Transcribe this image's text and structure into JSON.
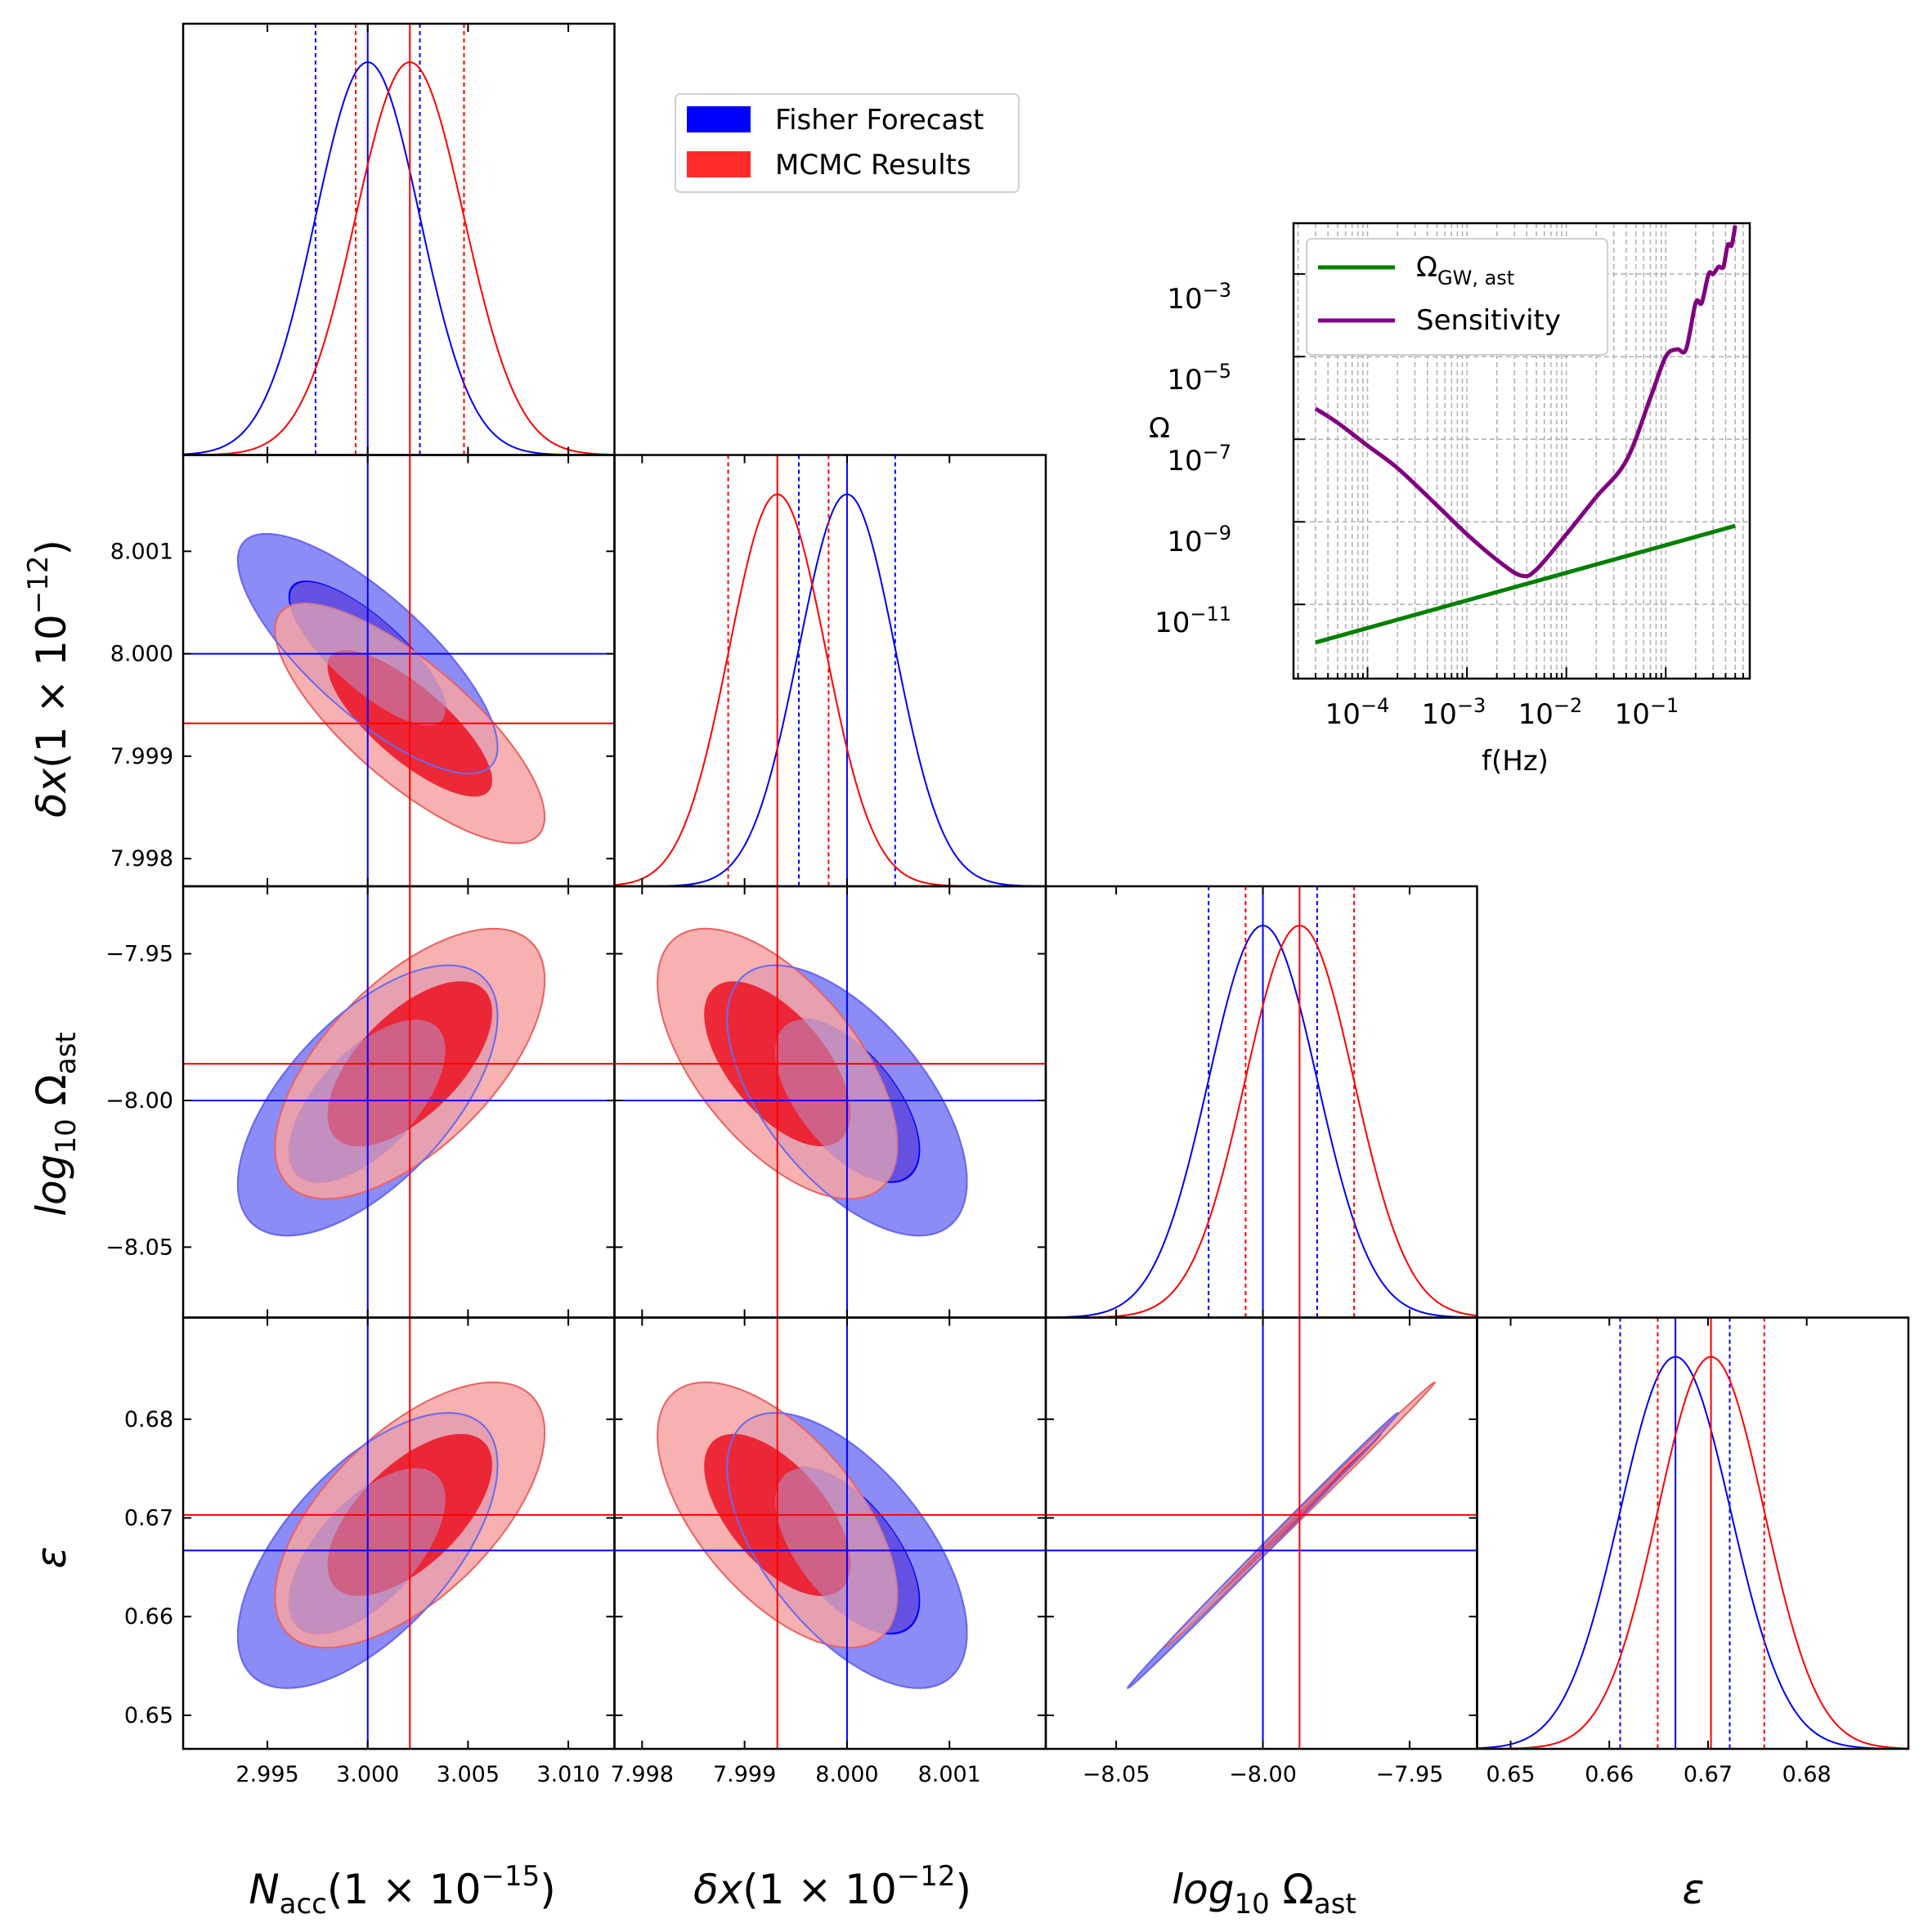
{
  "colors": {
    "fisher": "#0000ff",
    "fisher_fill_outer": "#8c8cf7",
    "mcmc": "#ff0000",
    "mcmc_fill_outer": "#f6a3a3",
    "mcmc_fill_inner": "#ec1c2c",
    "omega_gw": "#008000",
    "sensitivity": "#800080",
    "grid": "#b0b0b0"
  },
  "legend": {
    "fisher_label": "Fisher Forecast",
    "mcmc_label": "MCMC Results"
  },
  "inset": {
    "omega_label": "ΩGW, ast",
    "omega_main": "Ω",
    "omega_sub": "GW, ast",
    "sensitivity_label": "Sensitivity",
    "ylabel": "Ω",
    "xlabel": "f(Hz)",
    "ytick_labels": [
      {
        "base": "10",
        "exp": "−3"
      },
      {
        "base": "10",
        "exp": "−5"
      },
      {
        "base": "10",
        "exp": "−7"
      },
      {
        "base": "10",
        "exp": "−9"
      },
      {
        "base": "10",
        "exp": "−11"
      }
    ],
    "xtick_labels": [
      {
        "base": "10",
        "exp": "−4"
      },
      {
        "base": "10",
        "exp": "−3"
      },
      {
        "base": "10",
        "exp": "−2"
      },
      {
        "base": "10",
        "exp": "−1"
      }
    ]
  },
  "axis_labels": {
    "nacc": {
      "main": "N",
      "sub": "acc",
      "tail": "(1 × 10",
      "exp": "−15",
      "close": ")"
    },
    "dx": {
      "main": "δx",
      "tail": "(1 × 10",
      "exp": "−12",
      "close": ")"
    },
    "omega": {
      "main": "log",
      "sub": "10",
      "tail": " Ω",
      "sub2": "ast"
    },
    "eps": {
      "main": "ε"
    }
  },
  "chart_data": [
    {
      "type": "corner",
      "parameters": [
        "N_acc (1e-15)",
        "δx (1e-12)",
        "log10 Ω_ast",
        "ε"
      ],
      "ranges": [
        [
          2.9908,
          3.0123
        ],
        [
          7.99773,
          8.00194
        ],
        [
          -8.074,
          -7.927
        ],
        [
          0.6466,
          0.6903
        ]
      ],
      "ticks": [
        [
          "2.995",
          "3.000",
          "3.005",
          "3.010"
        ],
        [
          "7.998",
          "7.999",
          "8.000",
          "8.001"
        ],
        [
          "−8.05",
          "−8.00",
          "−7.95"
        ],
        [
          "0.65",
          "0.66",
          "0.67",
          "0.68"
        ]
      ],
      "tick_values": [
        [
          2.995,
          3.0,
          3.005,
          3.01
        ],
        [
          7.998,
          7.999,
          8.0,
          8.001
        ],
        [
          -8.05,
          -8.0,
          -7.95
        ],
        [
          0.65,
          0.66,
          0.67,
          0.68
        ]
      ],
      "series": [
        {
          "name": "Fisher Forecast",
          "mean": [
            3.0,
            8.0,
            -8.0,
            0.6667
          ],
          "sigma": [
            0.0026,
            0.00047,
            0.0185,
            0.0056
          ],
          "bounds_lo": [
            2.9974,
            7.99953,
            -8.0185,
            0.6611
          ],
          "bounds_hi": [
            3.0026,
            8.00047,
            -7.9815,
            0.6722
          ]
        },
        {
          "name": "MCMC Results",
          "mean": [
            3.0021,
            7.99932,
            -7.9875,
            0.6703
          ],
          "sigma": [
            0.0027,
            0.00047,
            0.0185,
            0.0054
          ],
          "bounds_lo": [
            2.9994,
            7.99884,
            -8.0059,
            0.6649
          ],
          "bounds_hi": [
            3.0048,
            7.99982,
            -7.9689,
            0.6757
          ]
        }
      ]
    },
    {
      "type": "line",
      "xscale": "log",
      "yscale": "log",
      "xlim": [
        1.8e-05,
        0.7
      ],
      "ylim": [
        1.6e-13,
        0.017
      ],
      "xlabel": "f(Hz)",
      "ylabel": "Ω",
      "grid": true,
      "legend": "top-left",
      "series": [
        {
          "name": "ΩGW, ast",
          "x": [
            3e-05,
            0.5
          ],
          "y": [
            1.2e-12,
            8e-10
          ]
        },
        {
          "name": "Sensitivity",
          "x": [
            3e-05,
            5e-05,
            0.0001,
            0.0002,
            0.0005,
            0.001,
            0.002,
            0.0035,
            0.005,
            0.01,
            0.02,
            0.04,
            0.07,
            0.1,
            0.13,
            0.16,
            0.2,
            0.23,
            0.27,
            0.3,
            0.34,
            0.38,
            0.42,
            0.46,
            0.5
          ],
          "y": [
            5.5e-07,
            2.5e-07,
            7e-08,
            2e-08,
            2.5e-09,
            5e-10,
            1.2e-10,
            5e-11,
            7e-11,
            5e-10,
            4e-09,
            3e-08,
            1e-06,
            1e-05,
            1.5e-05,
            1.5e-05,
            0.0002,
            0.0002,
            0.001,
            0.001,
            0.0015,
            0.0015,
            0.005,
            0.005,
            0.015
          ]
        }
      ]
    }
  ]
}
